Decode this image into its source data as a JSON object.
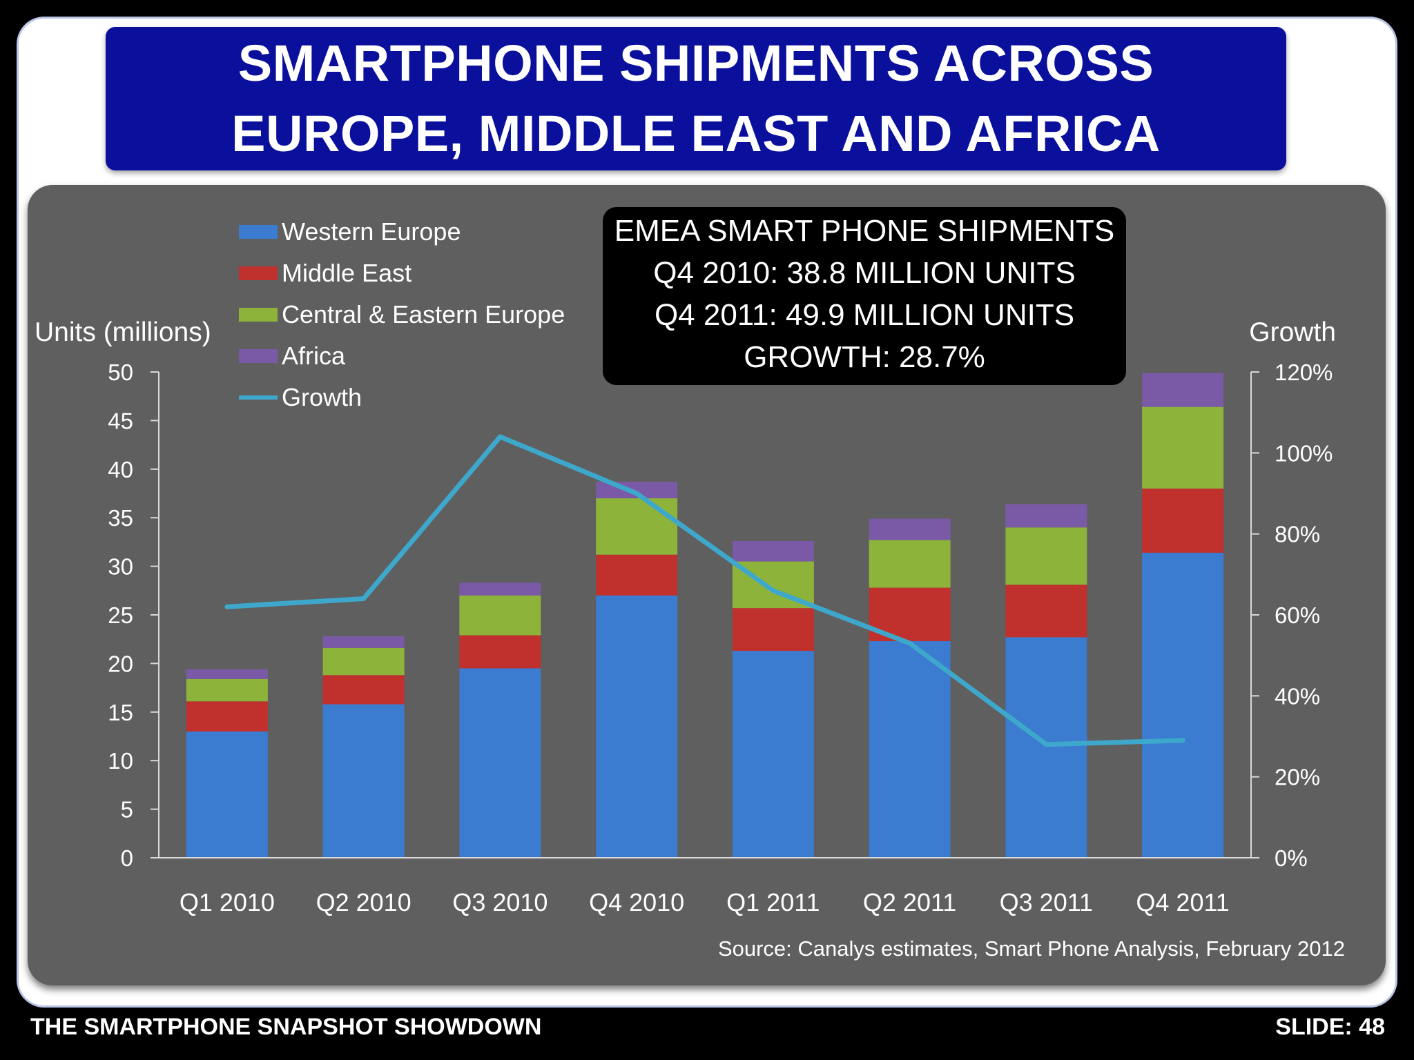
{
  "slide": {
    "title_lines": [
      "SMARTPHONE SHIPMENTS ACROSS",
      "EUROPE, MIDDLE EAST AND AFRICA"
    ],
    "info_box": [
      "EMEA SMART PHONE SHIPMENTS",
      "Q4 2010: 38.8 MILLION UNITS",
      "Q4 2011: 49.9 MILLION UNITS",
      "GROWTH: 28.7%"
    ],
    "source": "Source: Canalys estimates, Smart Phone Analysis, February 2012",
    "footer_left": "THE SMARTPHONE SNAPSHOT SHOWDOWN",
    "footer_right": "SLIDE: 48"
  },
  "chart_data": {
    "type": "bar",
    "stacked": true,
    "categories": [
      "Q1 2010",
      "Q2 2010",
      "Q3 2010",
      "Q4 2010",
      "Q1 2011",
      "Q2 2011",
      "Q3 2011",
      "Q4 2011"
    ],
    "series": [
      {
        "name": "Western Europe",
        "color": "#3b7bd0",
        "values": [
          13.0,
          15.8,
          19.5,
          27.0,
          21.3,
          22.3,
          22.7,
          31.4
        ]
      },
      {
        "name": "Middle East",
        "color": "#c0302c",
        "values": [
          3.1,
          3.0,
          3.4,
          4.2,
          4.4,
          5.5,
          5.4,
          6.6
        ]
      },
      {
        "name": "Central & Eastern Europe",
        "color": "#8db33a",
        "values": [
          2.3,
          2.8,
          4.1,
          5.8,
          4.8,
          4.9,
          5.9,
          8.4
        ]
      },
      {
        "name": "Africa",
        "color": "#7a5aa6",
        "values": [
          1.0,
          1.2,
          1.3,
          1.7,
          2.1,
          2.2,
          2.4,
          3.5
        ]
      }
    ],
    "line_series": {
      "name": "Growth",
      "color": "#3ea8cc",
      "axis": "right",
      "values": [
        62,
        64,
        104,
        90,
        66,
        53,
        28,
        29
      ]
    },
    "y_left": {
      "label": "Units (millions)",
      "min": 0,
      "max": 50,
      "ticks": [
        "0",
        "5",
        "10",
        "15",
        "20",
        "25",
        "30",
        "35",
        "40",
        "45",
        "50"
      ]
    },
    "y_right": {
      "label": "Growth",
      "min": 0,
      "max": 120,
      "ticks": [
        "0%",
        "20%",
        "40%",
        "60%",
        "80%",
        "100%",
        "120%"
      ]
    },
    "legend_position": "top-left",
    "grid": false
  }
}
